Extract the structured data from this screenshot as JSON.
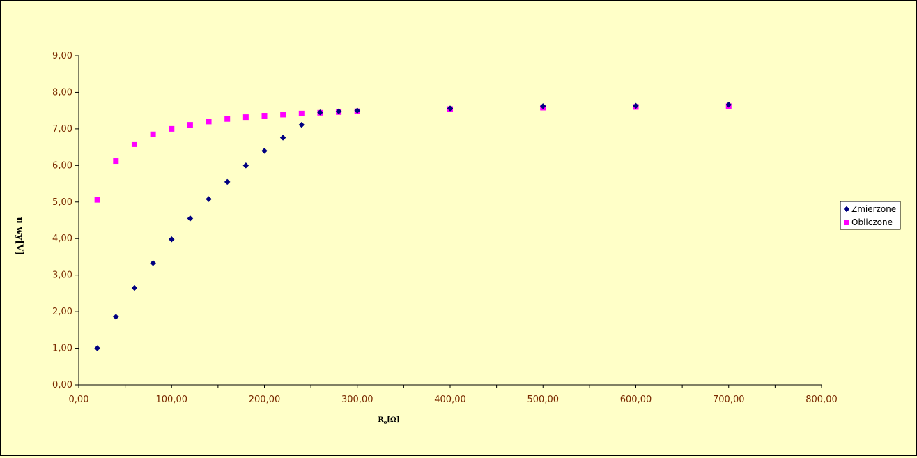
{
  "chart_data": {
    "type": "scatter",
    "xlabel": "R",
    "xlabel_sub": "o",
    "xlabel_unit": "[Ω]",
    "ylabel": "u wy[V]",
    "xlim": [
      0,
      800
    ],
    "ylim": [
      0,
      9
    ],
    "xticks": [
      "0,00",
      "100,00",
      "200,00",
      "300,00",
      "400,00",
      "500,00",
      "600,00",
      "700,00",
      "800,00"
    ],
    "yticks": [
      "0,00",
      "1,00",
      "2,00",
      "3,00",
      "4,00",
      "5,00",
      "6,00",
      "7,00",
      "8,00",
      "9,00"
    ],
    "grid": false,
    "legend_position": "right",
    "colors": {
      "Zmierzone": "#000080",
      "Obliczone": "#ff00ff"
    },
    "series": [
      {
        "name": "Zmierzone",
        "marker": "diamond",
        "x": [
          20,
          40,
          60,
          80,
          100,
          120,
          140,
          160,
          180,
          200,
          220,
          240,
          260,
          280,
          300,
          400,
          500,
          600,
          700
        ],
        "y": [
          1.0,
          1.86,
          2.65,
          3.33,
          3.98,
          4.55,
          5.08,
          5.55,
          6.0,
          6.4,
          6.76,
          7.11,
          7.45,
          7.48,
          7.5,
          7.56,
          7.62,
          7.63,
          7.66
        ]
      },
      {
        "name": "Obliczone",
        "marker": "square",
        "x": [
          20,
          40,
          60,
          80,
          100,
          120,
          140,
          160,
          180,
          200,
          220,
          240,
          260,
          280,
          300,
          400,
          500,
          600,
          700
        ],
        "y": [
          5.06,
          6.12,
          6.58,
          6.85,
          7.0,
          7.11,
          7.2,
          7.27,
          7.32,
          7.36,
          7.39,
          7.42,
          7.44,
          7.46,
          7.48,
          7.54,
          7.58,
          7.6,
          7.62
        ]
      }
    ]
  }
}
